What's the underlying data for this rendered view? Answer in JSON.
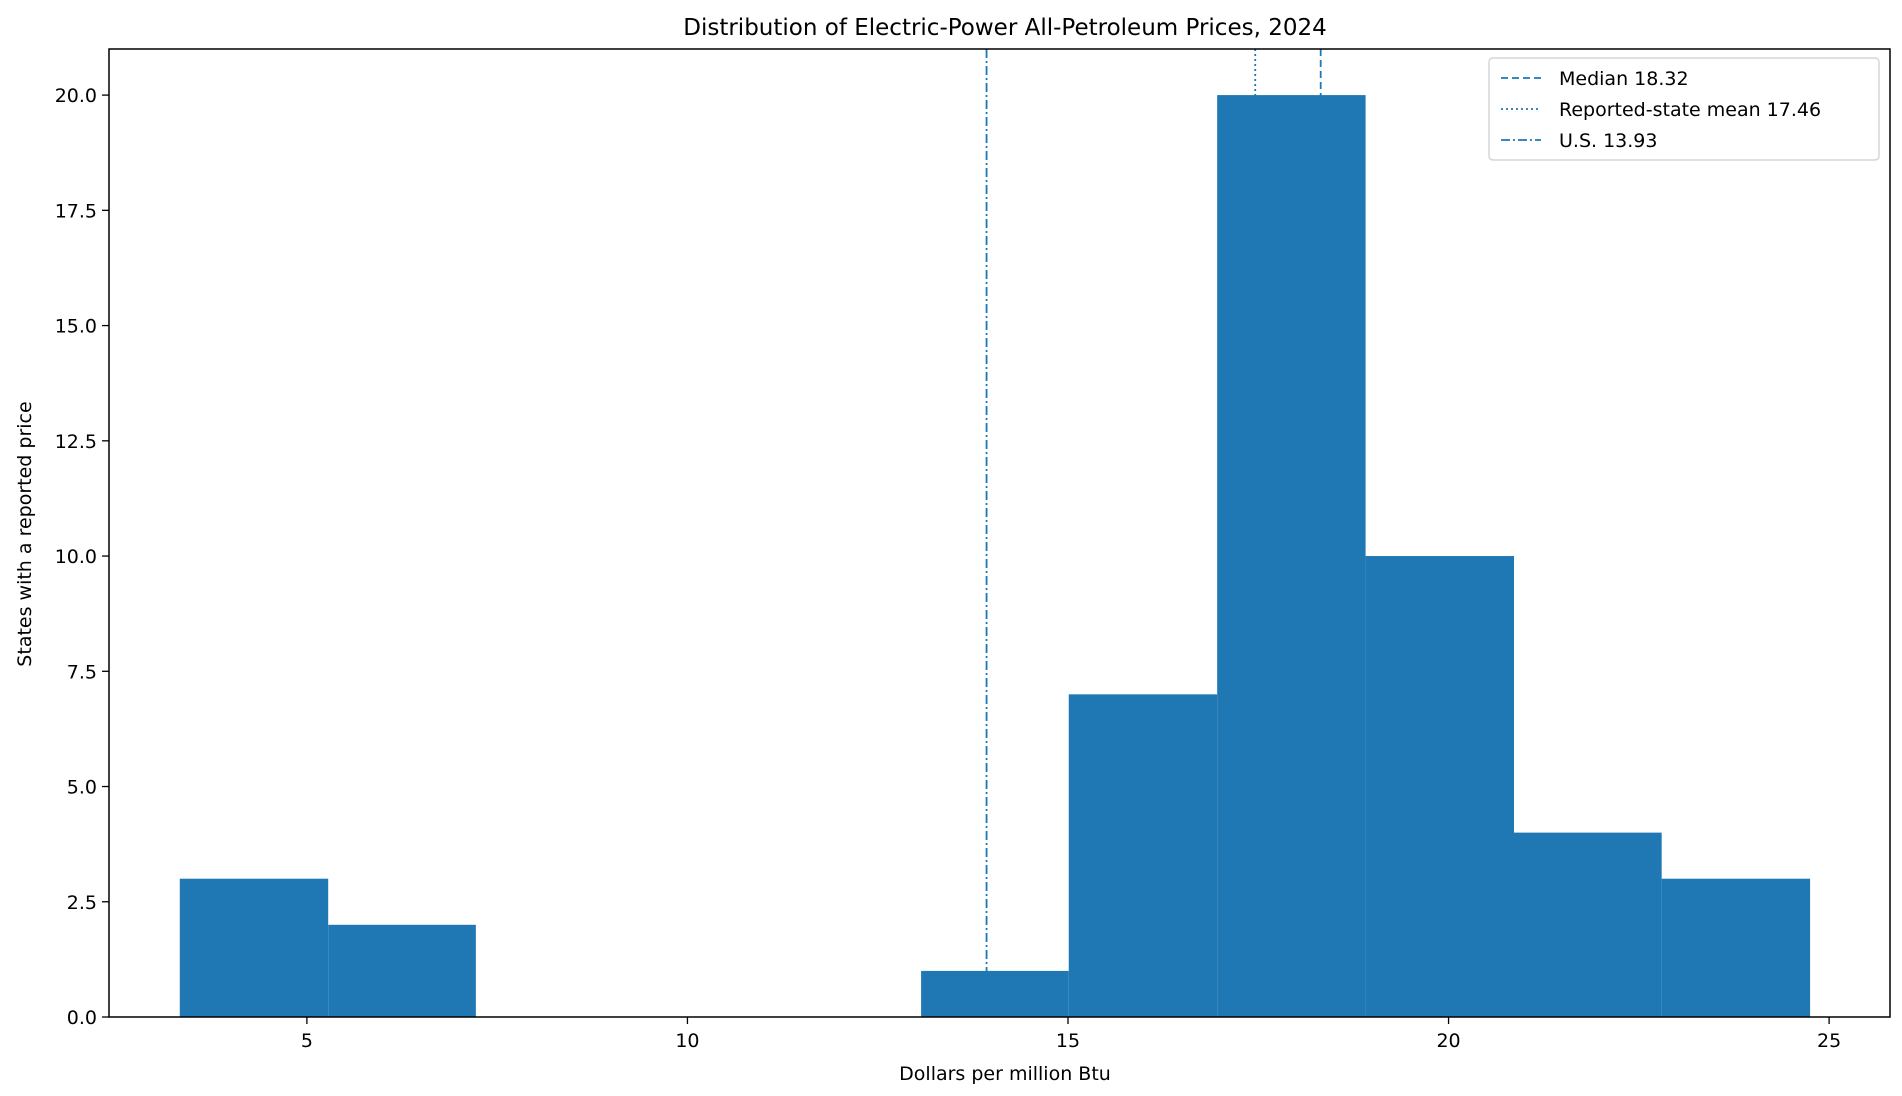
{
  "chart_data": {
    "type": "bar",
    "title": "Distribution of Electric-Power All-Petroleum Prices, 2024",
    "xlabel": "Dollars per million Btu",
    "ylabel": "States with a reported price",
    "xlim": [
      2.4,
      25.8
    ],
    "ylim": [
      0,
      21
    ],
    "x_ticks": [
      5,
      10,
      15,
      20,
      25
    ],
    "y_ticks": [
      0.0,
      2.5,
      5.0,
      7.5,
      10.0,
      12.5,
      15.0,
      17.5,
      20.0
    ],
    "x_tick_labels": [
      "5",
      "10",
      "15",
      "20",
      "25"
    ],
    "y_tick_labels": [
      "0.0",
      "2.5",
      "5.0",
      "7.5",
      "10.0",
      "12.5",
      "15.0",
      "17.5",
      "20.0"
    ],
    "grid": false,
    "legend_position": "top-right",
    "bar_color": "#1f77b4",
    "bins": [
      {
        "x0": 3.33,
        "x1": 5.28,
        "count": 3
      },
      {
        "x0": 5.28,
        "x1": 7.22,
        "count": 2
      },
      {
        "x0": 7.22,
        "x1": 9.17,
        "count": 0
      },
      {
        "x0": 9.17,
        "x1": 11.12,
        "count": 0
      },
      {
        "x0": 11.12,
        "x1": 13.07,
        "count": 0
      },
      {
        "x0": 13.07,
        "x1": 15.01,
        "count": 1
      },
      {
        "x0": 15.01,
        "x1": 16.96,
        "count": 7
      },
      {
        "x0": 16.96,
        "x1": 18.91,
        "count": 20
      },
      {
        "x0": 18.91,
        "x1": 20.86,
        "count": 10
      },
      {
        "x0": 20.86,
        "x1": 22.8,
        "count": 4
      },
      {
        "x0": 22.8,
        "x1": 24.75,
        "count": 3
      }
    ],
    "reference_lines": [
      {
        "label": "Median 18.32",
        "x": 18.32,
        "style": "dashed",
        "color": "#1f77b4"
      },
      {
        "label": "Reported-state mean 17.46",
        "x": 17.46,
        "style": "dotted",
        "color": "#1f77b4"
      },
      {
        "label": "U.S. 13.93",
        "x": 13.93,
        "style": "dashdot",
        "color": "#1f77b4"
      }
    ]
  }
}
